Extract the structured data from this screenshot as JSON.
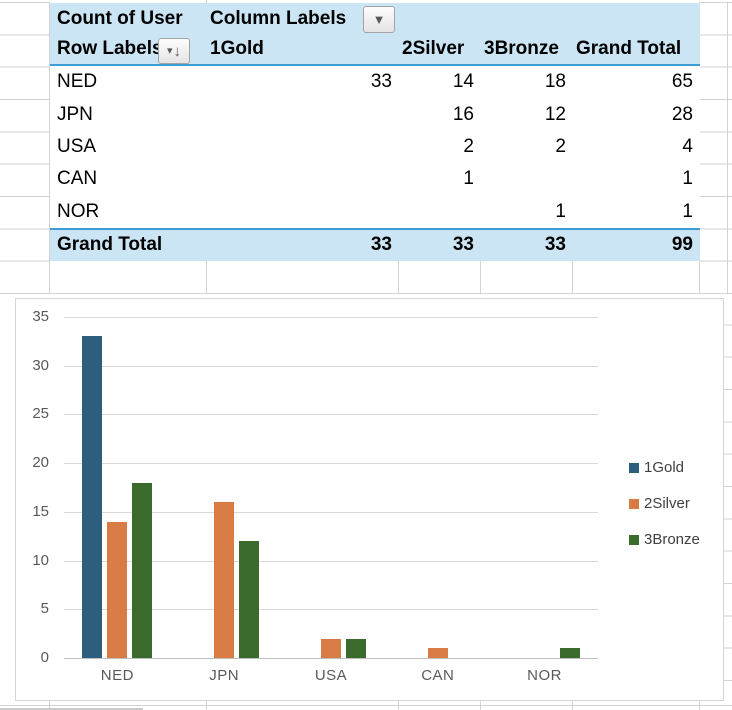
{
  "pivot_table": {
    "title_cell": "Count of User",
    "column_labels_cell": "Column Labels",
    "row_labels_cell": "Row Labels",
    "column_headers": [
      "1Gold",
      "2Silver",
      "3Bronze",
      "Grand Total"
    ],
    "rows": [
      {
        "label": "NED",
        "gold": "33",
        "silver": "14",
        "bronze": "18",
        "total": "65"
      },
      {
        "label": "JPN",
        "gold": "",
        "silver": "16",
        "bronze": "12",
        "total": "28"
      },
      {
        "label": "USA",
        "gold": "",
        "silver": "2",
        "bronze": "2",
        "total": "4"
      },
      {
        "label": "CAN",
        "gold": "",
        "silver": "1",
        "bronze": "",
        "total": "1"
      },
      {
        "label": "NOR",
        "gold": "",
        "silver": "",
        "bronze": "1",
        "total": "1"
      }
    ],
    "grand_total": {
      "label": "Grand Total",
      "gold": "33",
      "silver": "33",
      "bronze": "33",
      "total": "99"
    },
    "header_fill": "#CBE5F4",
    "accent_border": "#3E9CD4"
  },
  "filters": {
    "column_button_glyph": "▼",
    "row_button_triangle": "▾",
    "row_button_arrow": "↓"
  },
  "chart_data": {
    "type": "bar",
    "categories": [
      "NED",
      "JPN",
      "USA",
      "CAN",
      "NOR"
    ],
    "series": [
      {
        "name": "1Gold",
        "color": "#2E5E7E",
        "values": [
          33,
          null,
          null,
          null,
          null
        ]
      },
      {
        "name": "2Silver",
        "color": "#D87B45",
        "values": [
          14,
          16,
          2,
          1,
          null
        ]
      },
      {
        "name": "3Bronze",
        "color": "#3A6B2C",
        "values": [
          18,
          12,
          2,
          null,
          1
        ]
      }
    ],
    "title": "",
    "xlabel": "",
    "ylabel": "",
    "ylim": [
      0,
      35
    ],
    "ytick_step": 5,
    "grid": true,
    "legend_position": "right"
  }
}
